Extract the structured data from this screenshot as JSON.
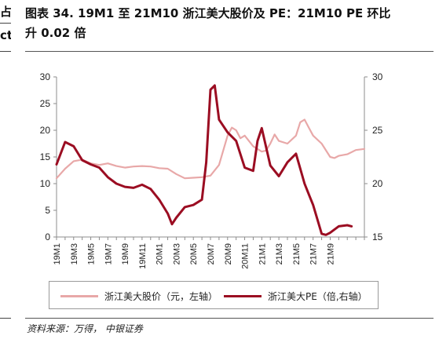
{
  "left_crop": {
    "line1": "占",
    "line2": "ct"
  },
  "title": {
    "line1": "图表 34. 19M1 至 21M10 浙江美大股价及 PE：21M10 PE 环比",
    "line2": "升 0.02 倍"
  },
  "source": "资料来源：万得， 中银证券",
  "colors": {
    "price": "#e8a8a8",
    "pe": "#9b0d22"
  },
  "chart_data": {
    "type": "line",
    "x_tick_labels": [
      "19M1",
      "19M3",
      "19M5",
      "19M7",
      "19M9",
      "19M11",
      "20M1",
      "20M3",
      "20M5",
      "20M7",
      "20M9",
      "20M11",
      "21M1",
      "21M3",
      "21M5",
      "21M7",
      "21M9"
    ],
    "y_left": {
      "ticks": [
        0,
        5,
        10,
        15,
        20,
        25,
        30
      ],
      "lim": [
        0,
        30
      ]
    },
    "y_right": {
      "ticks": [
        15,
        20,
        25,
        30
      ],
      "lim": [
        15,
        30
      ]
    },
    "grid": false,
    "legend_placement": "bottom",
    "series": [
      {
        "name": "浙江美大股价（元，左轴）",
        "axis": "left",
        "color": "#e8a8a8",
        "points": [
          [
            0,
            11
          ],
          [
            1,
            12.8
          ],
          [
            2,
            14.2
          ],
          [
            3,
            14.5
          ],
          [
            4,
            13.8
          ],
          [
            5,
            13.5
          ],
          [
            6,
            13.8
          ],
          [
            7,
            13.3
          ],
          [
            8,
            13
          ],
          [
            9,
            13.2
          ],
          [
            10,
            13.3
          ],
          [
            11,
            13.2
          ],
          [
            12,
            12.9
          ],
          [
            13,
            12.8
          ],
          [
            14,
            11.8
          ],
          [
            15,
            11
          ],
          [
            16,
            11.1
          ],
          [
            17,
            11.2
          ],
          [
            18,
            11.5
          ],
          [
            19,
            13.5
          ],
          [
            20,
            19
          ],
          [
            20.5,
            20.5
          ],
          [
            21,
            20
          ],
          [
            21.5,
            18.5
          ],
          [
            22,
            19
          ],
          [
            23,
            17
          ],
          [
            24,
            16
          ],
          [
            24.5,
            16.2
          ],
          [
            25,
            17.5
          ],
          [
            25.5,
            19.2
          ],
          [
            26,
            18
          ],
          [
            27,
            17.5
          ],
          [
            28,
            19
          ],
          [
            28.5,
            21.5
          ],
          [
            29,
            22
          ],
          [
            29.5,
            20.5
          ],
          [
            30,
            19
          ],
          [
            31,
            17.5
          ],
          [
            32,
            15
          ],
          [
            32.5,
            14.8
          ],
          [
            33,
            15.2
          ],
          [
            34,
            15.5
          ],
          [
            35,
            16.3
          ],
          [
            36,
            16.5
          ]
        ]
      },
      {
        "name": "浙江美大PE（倍,右轴）",
        "axis": "right",
        "color": "#9b0d22",
        "points": [
          [
            0,
            21.8
          ],
          [
            1,
            23.9
          ],
          [
            2,
            23.5
          ],
          [
            3,
            22.2
          ],
          [
            4,
            21.8
          ],
          [
            5,
            21.5
          ],
          [
            6,
            20.6
          ],
          [
            7,
            20
          ],
          [
            8,
            19.7
          ],
          [
            9,
            19.6
          ],
          [
            10,
            19.9
          ],
          [
            11,
            19.5
          ],
          [
            12,
            18.5
          ],
          [
            13,
            17.2
          ],
          [
            13.5,
            16.2
          ],
          [
            14,
            16.8
          ],
          [
            15,
            17.8
          ],
          [
            16,
            18
          ],
          [
            17,
            18.5
          ],
          [
            17.5,
            22
          ],
          [
            18,
            28.8
          ],
          [
            18.5,
            29.2
          ],
          [
            19,
            26
          ],
          [
            20,
            24.8
          ],
          [
            21,
            24
          ],
          [
            22,
            21.5
          ],
          [
            23,
            21.2
          ],
          [
            23.5,
            24
          ],
          [
            24,
            25.2
          ],
          [
            25,
            21.7
          ],
          [
            26,
            20.7
          ],
          [
            27,
            22
          ],
          [
            28,
            22.8
          ],
          [
            29,
            20
          ],
          [
            29.5,
            19
          ],
          [
            30,
            18
          ],
          [
            31,
            15.3
          ],
          [
            31.5,
            15.2
          ],
          [
            32,
            15.4
          ],
          [
            33,
            16
          ],
          [
            34,
            16.1
          ],
          [
            34.5,
            16
          ]
        ]
      }
    ]
  },
  "legend": {
    "price_label": "浙江美大股价（元，左轴）",
    "pe_label": "浙江美大PE（倍,右轴）"
  }
}
